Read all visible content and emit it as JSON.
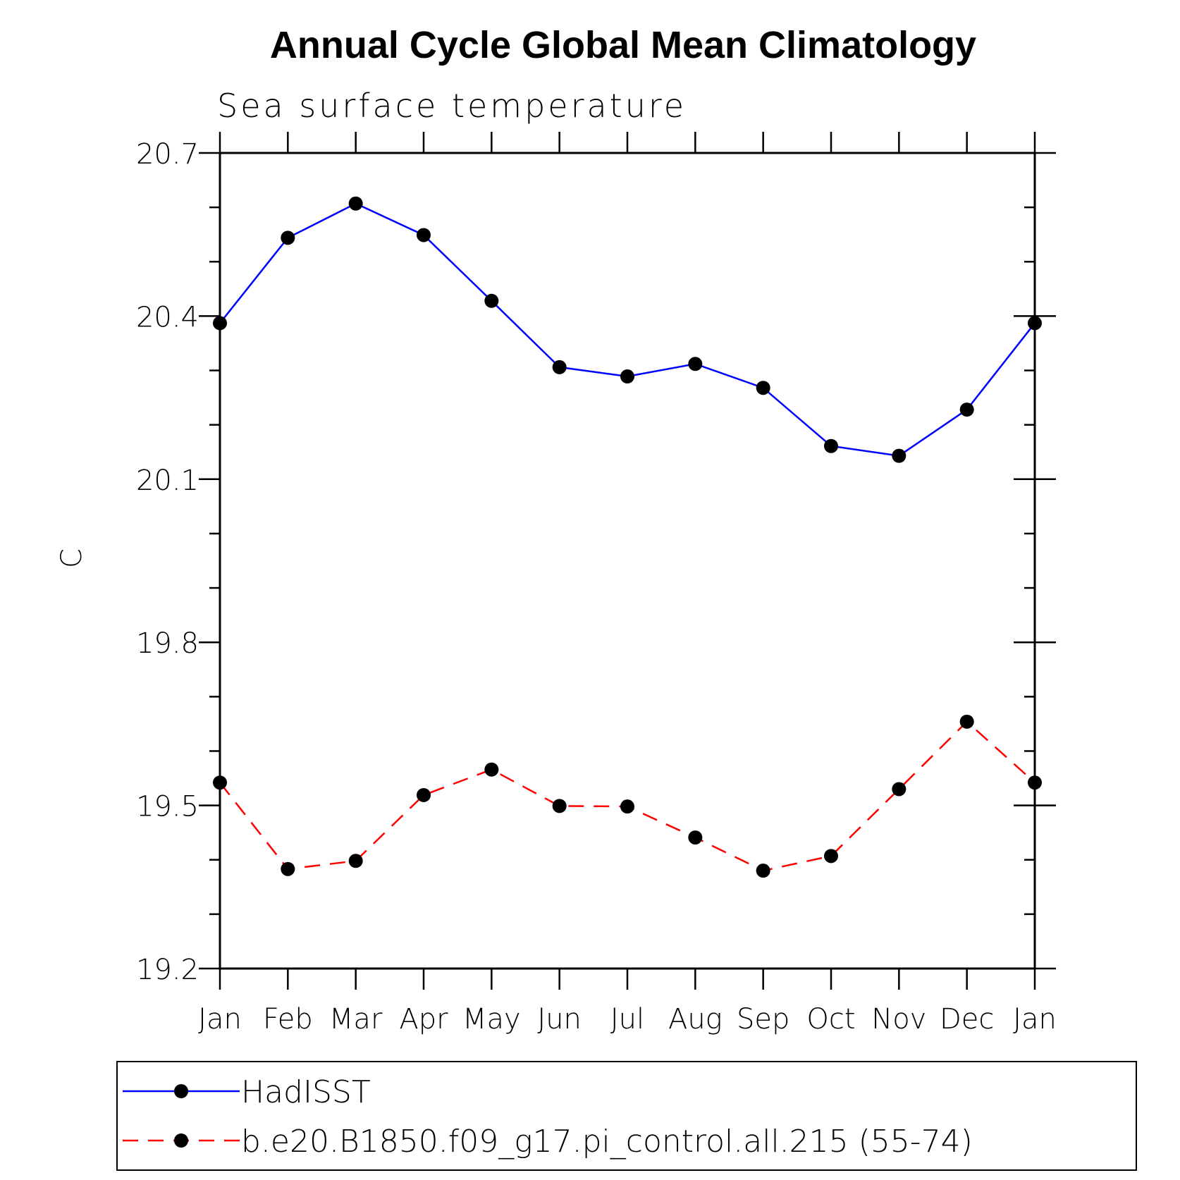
{
  "chart_data": {
    "type": "line",
    "title": "Annual Cycle Global Mean Climatology",
    "subtitle": "Sea surface temperature",
    "ylabel": "C",
    "xlabel": "",
    "ylim": [
      19.2,
      20.7
    ],
    "yticks": [
      "20.7",
      "20.4",
      "20.1",
      "19.8",
      "19.5",
      "19.2"
    ],
    "yminor_step": 0.1,
    "categories": [
      "Jan",
      "Feb",
      "Mar",
      "Apr",
      "May",
      "Jun",
      "Jul",
      "Aug",
      "Sep",
      "Oct",
      "Nov",
      "Dec",
      "Jan"
    ],
    "grid": false,
    "legend_position": "bottom",
    "series": [
      {
        "name": "HadISST",
        "color": "#0000ff",
        "dash": "solid",
        "marker": "filled-circle",
        "values": [
          20.387,
          20.544,
          20.607,
          20.549,
          20.428,
          20.306,
          20.289,
          20.312,
          20.268,
          20.161,
          20.143,
          20.228,
          20.387
        ]
      },
      {
        "name": "b.e20.B1850.f09_g17.pi_control.all.215 (55-74)",
        "color": "#ff0000",
        "dash": "dashed",
        "marker": "filled-circle",
        "values": [
          19.542,
          19.383,
          19.398,
          19.519,
          19.566,
          19.499,
          19.498,
          19.441,
          19.38,
          19.407,
          19.53,
          19.654,
          19.542
        ]
      }
    ]
  }
}
